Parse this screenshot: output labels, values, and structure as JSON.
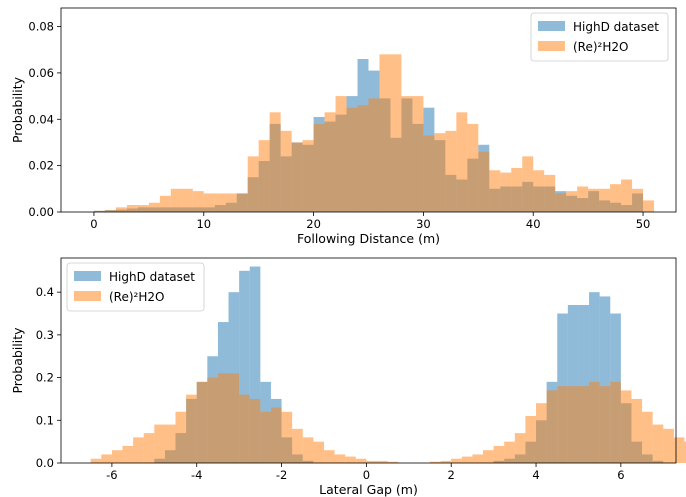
{
  "chart_data": [
    {
      "type": "bar",
      "xlabel": "Following Distance (m)",
      "ylabel": "Probability",
      "xlim": [
        -3,
        53
      ],
      "ylim": [
        0,
        0.088
      ],
      "xticks": [
        0,
        10,
        20,
        30,
        40,
        50
      ],
      "yticks": [
        0.0,
        0.02,
        0.04,
        0.06,
        0.08
      ],
      "ytick_labels": [
        "0.00",
        "0.02",
        "0.04",
        "0.06",
        "0.08"
      ],
      "legend_loc": "upper right",
      "bin_width": 1,
      "series": [
        {
          "name": "HighD dataset",
          "color": "#1f77b4",
          "x_start": 0,
          "values": [
            0.0005,
            0.0008,
            0.001,
            0.0015,
            0.002,
            0.002,
            0.002,
            0.002,
            0.002,
            0.002,
            0.002,
            0.003,
            0.004,
            0.008,
            0.015,
            0.022,
            0.038,
            0.024,
            0.03,
            0.029,
            0.041,
            0.039,
            0.042,
            0.05,
            0.066,
            0.061,
            0.049,
            0.032,
            0.049,
            0.038,
            0.045,
            0.031,
            0.016,
            0.014,
            0.023,
            0.029,
            0.01,
            0.011,
            0.011,
            0.013,
            0.011,
            0.011,
            0.009,
            0.007,
            0.006,
            0.009,
            0.005,
            0.004,
            0.003,
            0.008
          ]
        },
        {
          "name": "(Re)²H2O",
          "color": "#ff7f0e",
          "x_start": 0,
          "values": [
            0.0005,
            0.0008,
            0.002,
            0.003,
            0.003,
            0.004,
            0.007,
            0.01,
            0.01,
            0.009,
            0.008,
            0.008,
            0.008,
            0.008,
            0.024,
            0.031,
            0.043,
            0.035,
            0.03,
            0.031,
            0.038,
            0.043,
            0.05,
            0.045,
            0.046,
            0.049,
            0.068,
            0.068,
            0.05,
            0.05,
            0.033,
            0.034,
            0.035,
            0.043,
            0.038,
            0.026,
            0.018,
            0.017,
            0.019,
            0.024,
            0.018,
            0.016,
            0.008,
            0.009,
            0.011,
            0.01,
            0.01,
            0.012,
            0.014,
            0.01,
            0.005
          ]
        }
      ]
    },
    {
      "type": "bar",
      "xlabel": "Lateral Gap (m)",
      "ylabel": "Probability",
      "xlim": [
        -7.2,
        7.3
      ],
      "ylim": [
        0,
        0.48
      ],
      "xticks": [
        -6,
        -4,
        -2,
        0,
        2,
        4,
        6
      ],
      "yticks": [
        0.0,
        0.1,
        0.2,
        0.3,
        0.4
      ],
      "ytick_labels": [
        "0.0",
        "0.1",
        "0.2",
        "0.3",
        "0.4"
      ],
      "legend_loc": "upper left",
      "bin_width": 0.25,
      "series": [
        {
          "name": "HighD dataset",
          "color": "#1f77b4",
          "x_start": -5,
          "values": [
            0.01,
            0.03,
            0.07,
            0.15,
            0.19,
            0.25,
            0.33,
            0.4,
            0.45,
            0.46,
            0.19,
            0.15,
            0.06,
            0.02,
            0.005,
            0.0,
            0.0,
            0.0,
            0.0,
            0.0,
            0.0,
            0.0,
            0.0,
            0.0,
            0.0,
            0.0,
            0.0,
            0.0,
            0.0,
            0.0,
            0.0,
            0.0,
            0.005,
            0.01,
            0.02,
            0.05,
            0.1,
            0.19,
            0.35,
            0.37,
            0.37,
            0.4,
            0.39,
            0.35,
            0.14,
            0.05,
            0.02,
            0.005
          ]
        },
        {
          "name": "(Re)²H2O",
          "color": "#ff7f0e",
          "x_start": -6.5,
          "values": [
            0.01,
            0.02,
            0.03,
            0.04,
            0.06,
            0.07,
            0.09,
            0.09,
            0.12,
            0.16,
            0.19,
            0.2,
            0.21,
            0.21,
            0.16,
            0.15,
            0.12,
            0.13,
            0.12,
            0.08,
            0.06,
            0.05,
            0.03,
            0.02,
            0.015,
            0.01,
            0.005,
            0.005,
            0.003,
            0.0,
            0.0,
            0.0,
            0.003,
            0.005,
            0.01,
            0.015,
            0.02,
            0.03,
            0.04,
            0.05,
            0.07,
            0.11,
            0.14,
            0.17,
            0.18,
            0.18,
            0.18,
            0.19,
            0.18,
            0.19,
            0.17,
            0.15,
            0.12,
            0.09,
            0.08,
            0.06,
            0.05,
            0.02,
            0.01,
            0.005
          ]
        }
      ]
    }
  ]
}
